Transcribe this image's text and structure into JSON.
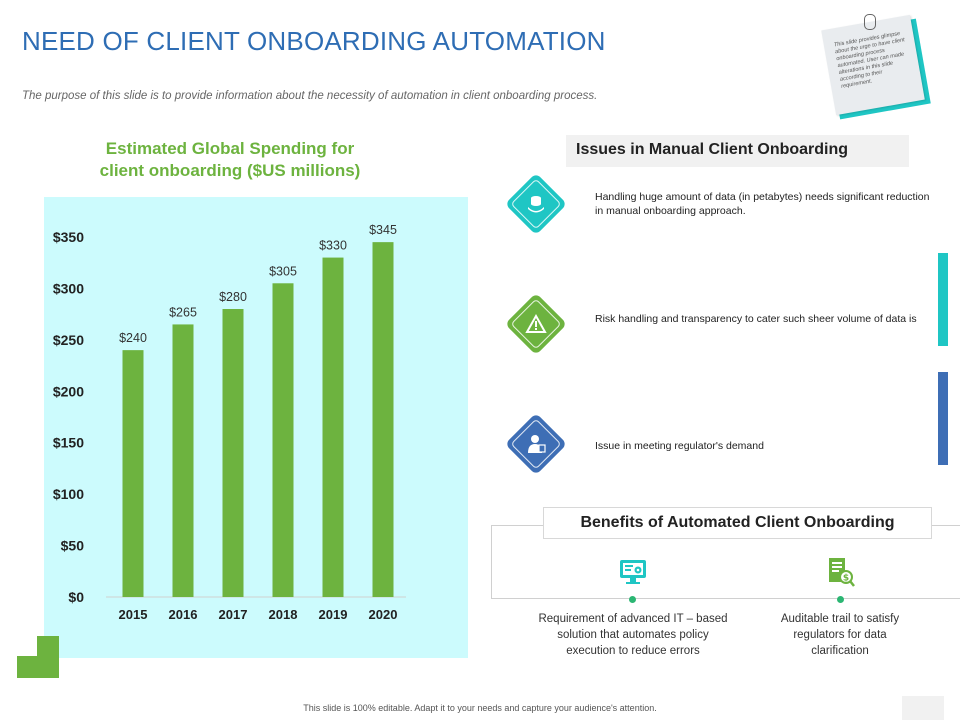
{
  "slide": {
    "title": "NEED OF CLIENT ONBOARDING AUTOMATION",
    "subtitle": "The purpose of this slide is to provide information about the necessity of automation in client onboarding process.",
    "footer": "This slide is 100% editable. Adapt it to your needs and capture your audience's attention."
  },
  "note": {
    "text": "This slide provides glimpse about the urge to have client onboarding process automated. User can made alterations in this slide according to their requirement."
  },
  "chart_heading": {
    "line1": "Estimated Global Spending for",
    "line2": "client onboarding ($US millions)"
  },
  "chart_data": {
    "type": "bar",
    "title": "Estimated Global Spending for client onboarding ($US millions)",
    "categories": [
      "2015",
      "2016",
      "2017",
      "2018",
      "2019",
      "2020"
    ],
    "values": [
      240,
      265,
      280,
      305,
      330,
      345
    ],
    "data_labels": [
      "$240",
      "$265",
      "$280",
      "$305",
      "$330",
      "$345"
    ],
    "y_ticks": [
      0,
      50,
      100,
      150,
      200,
      250,
      300,
      350
    ],
    "y_tick_labels": [
      "$0",
      "$50",
      "$100",
      "$150",
      "$200",
      "$250",
      "$300",
      "$350"
    ],
    "ylim": [
      0,
      350
    ],
    "xlabel": "",
    "ylabel": "",
    "grid": false,
    "legend": "none",
    "bar_color": "#6db33f",
    "background": "#ccfbfd"
  },
  "issues": {
    "header": "Issues in Manual Client Onboarding",
    "items": [
      {
        "text": "Handling huge amount of data (in petabytes) needs significant reduction in manual onboarding approach.",
        "color": "#1fc6c4",
        "icon": "data-icon"
      },
      {
        "text": "Risk handling and transparency to cater such sheer volume of data is",
        "color": "#6db33f",
        "icon": "warning-icon"
      },
      {
        "text": "Issue in meeting regulator's demand",
        "color": "#3e6eb5",
        "icon": "regulator-icon"
      }
    ],
    "side_bar_colors": [
      "#1fc6c4",
      "#3e6eb5"
    ]
  },
  "benefits": {
    "header": "Benefits of Automated Client Onboarding",
    "items": [
      {
        "text_lines": [
          "Requirement  of advanced IT – based",
          "solution that automates policy",
          "execution to reduce errors"
        ],
        "icon": "computer-settings-icon",
        "color": "#1fc6c4"
      },
      {
        "text_lines": [
          "Auditable trail to satisfy",
          "regulators for data",
          "clarification"
        ],
        "icon": "audit-document-icon",
        "color": "#6db33f"
      }
    ]
  },
  "colors": {
    "title": "#2e6db4",
    "accent_green": "#6db33f",
    "accent_teal": "#1fc6c4",
    "accent_blue": "#3e6eb5"
  }
}
